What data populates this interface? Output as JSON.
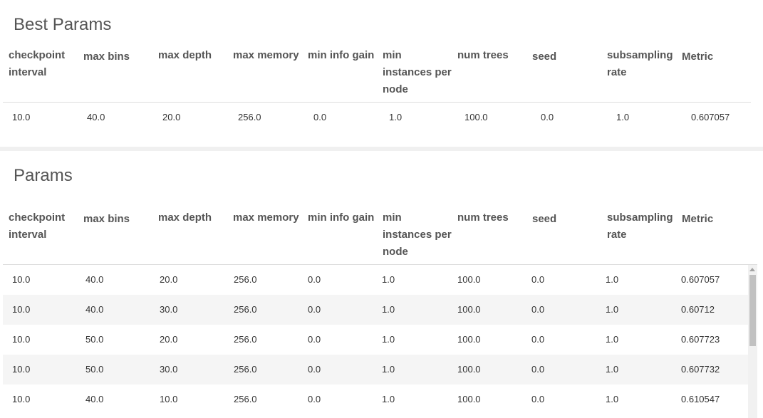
{
  "best_params": {
    "title": "Best Params",
    "row": [
      "10.0",
      "40.0",
      "20.0",
      "256.0",
      "0.0",
      "1.0",
      "100.0",
      "0.0",
      "1.0",
      "0.607057"
    ]
  },
  "params": {
    "title": "Params",
    "rows": [
      [
        "10.0",
        "40.0",
        "20.0",
        "256.0",
        "0.0",
        "1.0",
        "100.0",
        "0.0",
        "1.0",
        "0.607057"
      ],
      [
        "10.0",
        "40.0",
        "30.0",
        "256.0",
        "0.0",
        "1.0",
        "100.0",
        "0.0",
        "1.0",
        "0.60712"
      ],
      [
        "10.0",
        "50.0",
        "20.0",
        "256.0",
        "0.0",
        "1.0",
        "100.0",
        "0.0",
        "1.0",
        "0.607723"
      ],
      [
        "10.0",
        "50.0",
        "30.0",
        "256.0",
        "0.0",
        "1.0",
        "100.0",
        "0.0",
        "1.0",
        "0.607732"
      ],
      [
        "10.0",
        "40.0",
        "10.0",
        "256.0",
        "0.0",
        "1.0",
        "100.0",
        "0.0",
        "1.0",
        "0.610547"
      ]
    ]
  },
  "columns": [
    "checkpoint interval",
    "max bins",
    "max depth",
    "max memory",
    "min info gain",
    "min instances per node",
    "num trees",
    "seed",
    "subsampling rate",
    "Metric"
  ],
  "colors": {
    "header_text": "#555555",
    "row_alt": "#f5f5f5",
    "separator": "#f0f0f0"
  }
}
